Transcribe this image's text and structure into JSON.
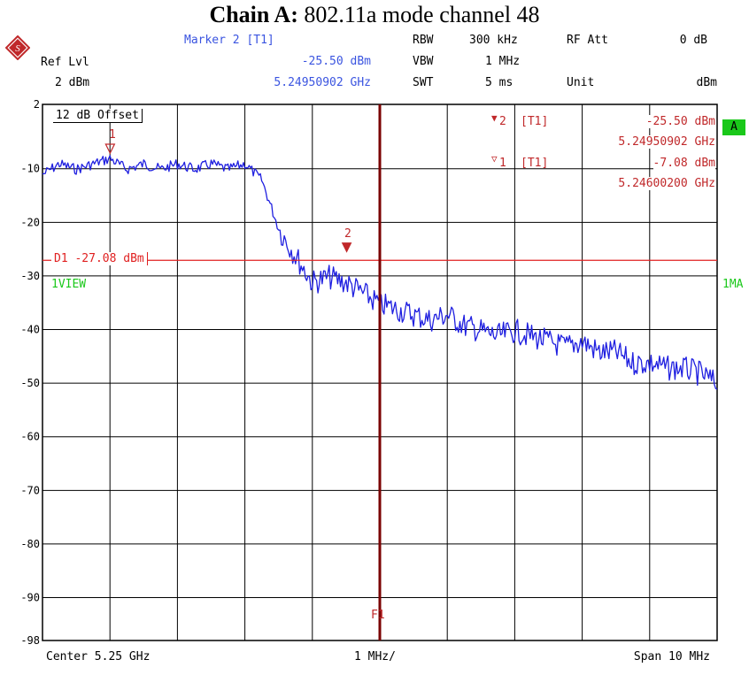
{
  "title": {
    "bold": "Chain A:",
    "rest": " 802.11a mode channel 48"
  },
  "header": {
    "ref_lvl_label": "Ref Lvl",
    "ref_lvl_value": "2 dBm",
    "marker_label": "Marker 2 [T1]",
    "marker_level": "-25.50 dBm",
    "marker_freq": "5.24950902 GHz",
    "rbw_label": "RBW",
    "rbw_value": "300 kHz",
    "vbw_label": "VBW",
    "vbw_value": "1 MHz",
    "swt_label": "SWT",
    "swt_value": "5 ms",
    "rfatt_label": "RF Att",
    "rfatt_value": "0 dB",
    "unit_label": "Unit",
    "unit_value": "dBm"
  },
  "markers_table": [
    {
      "symbol": "▼",
      "id": "2",
      "tag": "[T1]",
      "level": "-25.50 dBm",
      "freq": "5.24950902 GHz"
    },
    {
      "symbol": "▽",
      "id": "1",
      "tag": "[T1]",
      "level": "-7.08 dBm",
      "freq": "5.24600200 GHz"
    }
  ],
  "plot_labels": {
    "offset": "12 dB Offset",
    "display_line": "D1 -27.08 dBm",
    "view_left": "1VIEW",
    "view_right": "1MA",
    "badge": "A",
    "f1": "F1",
    "marker1": "1",
    "marker2": "2"
  },
  "footer": {
    "center": "Center 5.25 GHz",
    "div": "1 MHz/",
    "span": "Span 10 MHz"
  },
  "colors": {
    "trace": "#1f1fe0",
    "marker": "#c0282a",
    "display_line": "#e02020",
    "header_blue": "#3a54e0",
    "green": "#1ac81a",
    "grid": "#000000",
    "f1_line": "#7a0000"
  },
  "chart_data": {
    "type": "line",
    "title": "Chain A: 802.11a mode channel 48",
    "xlabel": "",
    "ylabel": "",
    "x_unit": "GHz",
    "y_unit": "dBm",
    "xlim": [
      5.245,
      5.255
    ],
    "ylim": [
      -98,
      2
    ],
    "y_ticks": [
      2,
      -10,
      -20,
      -30,
      -40,
      -50,
      -60,
      -70,
      -80,
      -90,
      -98
    ],
    "grid": true,
    "display_line_dbm": -27.08,
    "f1_ghz": 5.25,
    "markers": [
      {
        "name": "1",
        "x": 5.246002,
        "y": -7.08
      },
      {
        "name": "2",
        "x": 5.24950902,
        "y": -25.5
      }
    ],
    "series": [
      {
        "x": [
          5.245,
          5.24525,
          5.2455,
          5.24575,
          5.246,
          5.24625,
          5.2465,
          5.24675,
          5.247,
          5.24725,
          5.2475,
          5.24775,
          5.248,
          5.24825,
          5.2485,
          5.24875,
          5.249,
          5.24925,
          5.2495,
          5.24975,
          5.25,
          5.25025,
          5.2505,
          5.25075,
          5.251,
          5.25125,
          5.2515,
          5.25175,
          5.252,
          5.25225,
          5.2525,
          5.25275,
          5.253,
          5.25325,
          5.2535,
          5.25375,
          5.254,
          5.25425,
          5.2545,
          5.25475,
          5.255
        ],
        "values": [
          -11,
          -9,
          -10,
          -9,
          -8,
          -10,
          -9,
          -10,
          -9,
          -10,
          -9,
          -10,
          -9,
          -12,
          -21,
          -26,
          -31,
          -30,
          -31,
          -33,
          -35,
          -36,
          -37,
          -38,
          -37,
          -39,
          -40,
          -41,
          -40,
          -41,
          -42,
          -43,
          -42,
          -44,
          -44,
          -46,
          -46,
          -47,
          -47,
          -48,
          -50
        ]
      }
    ]
  }
}
